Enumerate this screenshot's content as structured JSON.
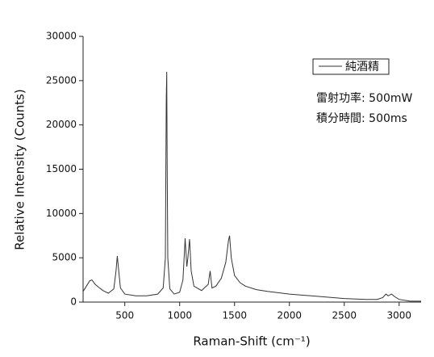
{
  "chart_data": {
    "type": "line",
    "x_label": "Raman-Shift (cm⁻¹)",
    "y_label": "Relative Intensity (Counts)",
    "x": [
      120,
      150,
      180,
      200,
      230,
      260,
      300,
      350,
      400,
      420,
      432,
      445,
      460,
      500,
      600,
      700,
      800,
      850,
      870,
      878,
      882,
      886,
      892,
      910,
      950,
      1000,
      1030,
      1050,
      1065,
      1075,
      1090,
      1105,
      1130,
      1200,
      1260,
      1278,
      1295,
      1330,
      1380,
      1420,
      1445,
      1455,
      1470,
      1500,
      1550,
      1600,
      1700,
      1800,
      2000,
      2200,
      2500,
      2700,
      2800,
      2850,
      2880,
      2900,
      2930,
      2960,
      3000,
      3100,
      3200
    ],
    "series": [
      {
        "name": "純酒精",
        "color": "#333333",
        "values": [
          1200,
          1800,
          2400,
          2500,
          2000,
          1700,
          1300,
          1000,
          1500,
          3500,
          5200,
          3500,
          1600,
          900,
          700,
          700,
          900,
          1600,
          5000,
          22800,
          26000,
          16000,
          5000,
          1500,
          900,
          1100,
          2500,
          7200,
          4000,
          5000,
          7100,
          3500,
          1800,
          1300,
          2000,
          3500,
          1600,
          1800,
          2700,
          4500,
          7000,
          7500,
          5000,
          3000,
          2200,
          1800,
          1400,
          1200,
          900,
          700,
          400,
          300,
          300,
          500,
          900,
          700,
          900,
          600,
          300,
          100,
          100
        ]
      }
    ],
    "xlim": [
      120,
      3200
    ],
    "xticks": [
      500,
      1000,
      1500,
      2000,
      2500,
      3000
    ],
    "ylim": [
      0,
      30000
    ],
    "yticks": [
      0,
      5000,
      10000,
      15000,
      20000,
      25000,
      30000
    ],
    "annotations": [
      "雷射功率: 500mW",
      "積分時間: 500ms"
    ]
  }
}
